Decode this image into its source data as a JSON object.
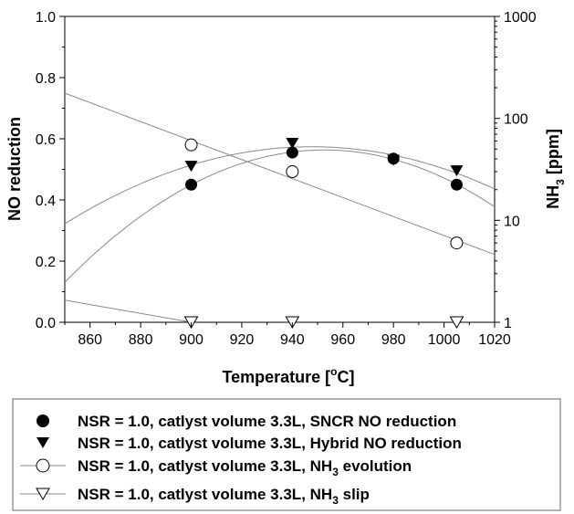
{
  "chart_data": {
    "type": "scatter",
    "xlabel_main": "Temperature [",
    "xlabel_sup": "o",
    "xlabel_end": "C]",
    "ylabel": "NO reduction",
    "y2label_main": "NH",
    "y2label_sub": "3",
    "y2label_end": " [ppm]",
    "xlim": [
      850,
      1020
    ],
    "ylim": [
      0,
      1.0
    ],
    "y2lim": [
      1,
      1000
    ],
    "y2scale": "log",
    "xticks": [
      860,
      880,
      900,
      920,
      940,
      960,
      980,
      1000,
      1020
    ],
    "yticks": [
      "0.0",
      "0.2",
      "0.4",
      "0.6",
      "0.8",
      "1.0"
    ],
    "y2ticks": [
      "1",
      "10",
      "100",
      "1000"
    ],
    "legend_placement": "bottom",
    "series": [
      {
        "name": "NSR = 1.0, catlyst volume 3.3L, SNCR NO reduction",
        "marker": "filled-circle",
        "axis": "left",
        "x": [
          900,
          940,
          980,
          1005
        ],
        "y": [
          0.45,
          0.555,
          0.535,
          0.45
        ],
        "fit": "quadratic"
      },
      {
        "name": "NSR = 1.0, catlyst volume 3.3L, Hybrid NO reduction",
        "marker": "filled-triangle-down",
        "axis": "left",
        "x": [
          900,
          940,
          980,
          1005
        ],
        "y": [
          0.51,
          0.585,
          0.53,
          0.495
        ],
        "fit": "quadratic"
      },
      {
        "name_main": "NSR = 1.0, catlyst volume 3.3L, NH",
        "name_sub": "3",
        "name_end": " evolution",
        "marker": "open-circle",
        "axis": "right",
        "x": [
          900,
          940,
          1005
        ],
        "y": [
          55,
          30,
          6
        ],
        "fit": "line"
      },
      {
        "name_main": "NSR = 1.0, catlyst volume 3.3L, NH",
        "name_sub": "3",
        "name_end": " slip",
        "marker": "open-triangle-down",
        "axis": "right",
        "x": [
          900,
          940,
          1005
        ],
        "y": [
          1,
          1,
          1
        ],
        "fit": "line"
      }
    ]
  }
}
